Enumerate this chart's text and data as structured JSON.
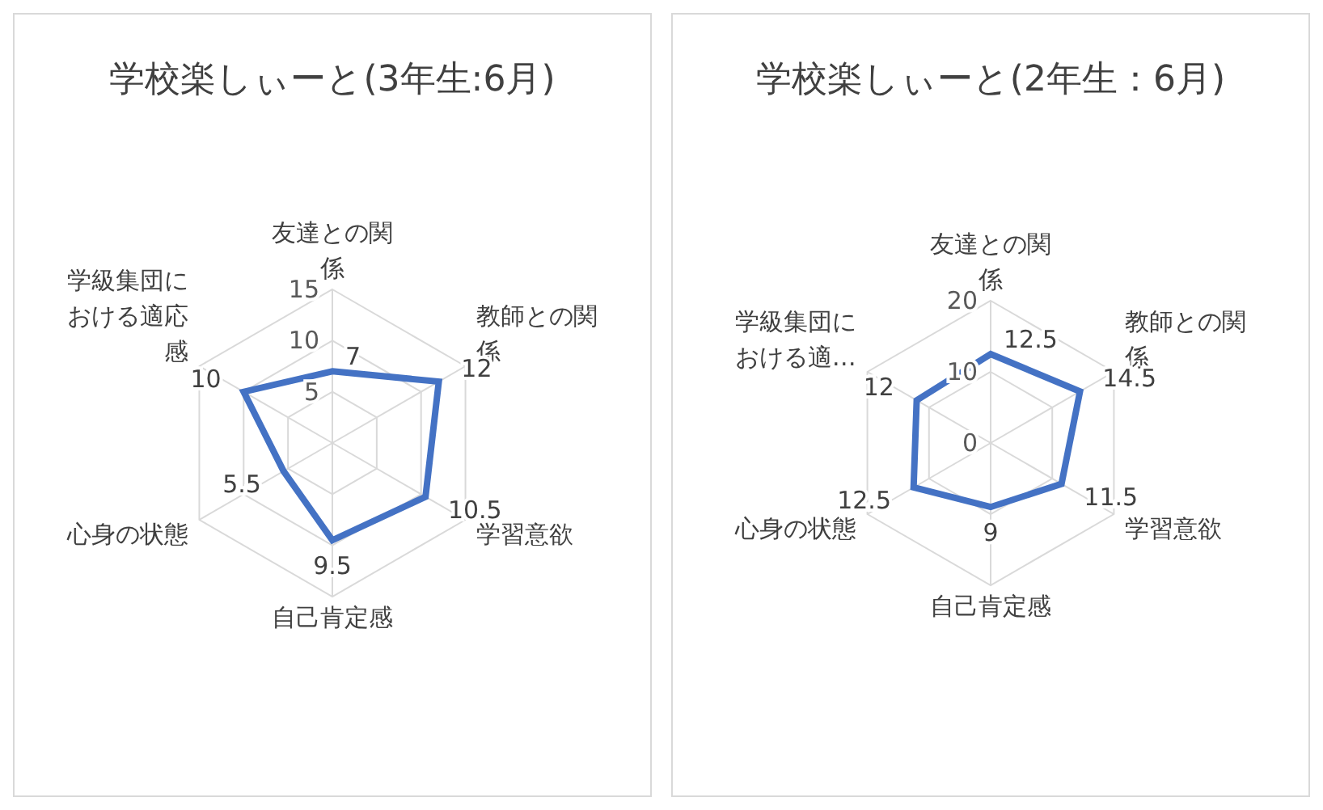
{
  "chart_data": [
    {
      "type": "radar",
      "title": "学校楽しぃーと(3年生:6月)",
      "categories": [
        "友達との関係",
        "教師との関係",
        "学習意欲",
        "自己肯定感",
        "心身の状態",
        "学級集団における適応感"
      ],
      "series": [
        {
          "color": "#4472c4",
          "values": [
            7,
            12,
            10.5,
            9.5,
            5.5,
            10
          ]
        }
      ],
      "ylim": [
        0,
        15
      ],
      "yticks": [
        5,
        10,
        15
      ],
      "grid": true,
      "data_labels": true
    },
    {
      "type": "radar",
      "title": "学校楽しぃーと(2年生：6月)",
      "categories": [
        "友達との関係",
        "教師との関係",
        "学習意欲",
        "自己肯定感",
        "心身の状態",
        "学級集団における適…"
      ],
      "series": [
        {
          "color": "#4472c4",
          "values": [
            12.5,
            14.5,
            11.5,
            9,
            12.5,
            12
          ]
        }
      ],
      "ylim": [
        0,
        20
      ],
      "yticks": [
        0,
        10,
        20
      ],
      "grid": true,
      "data_labels": true
    }
  ]
}
